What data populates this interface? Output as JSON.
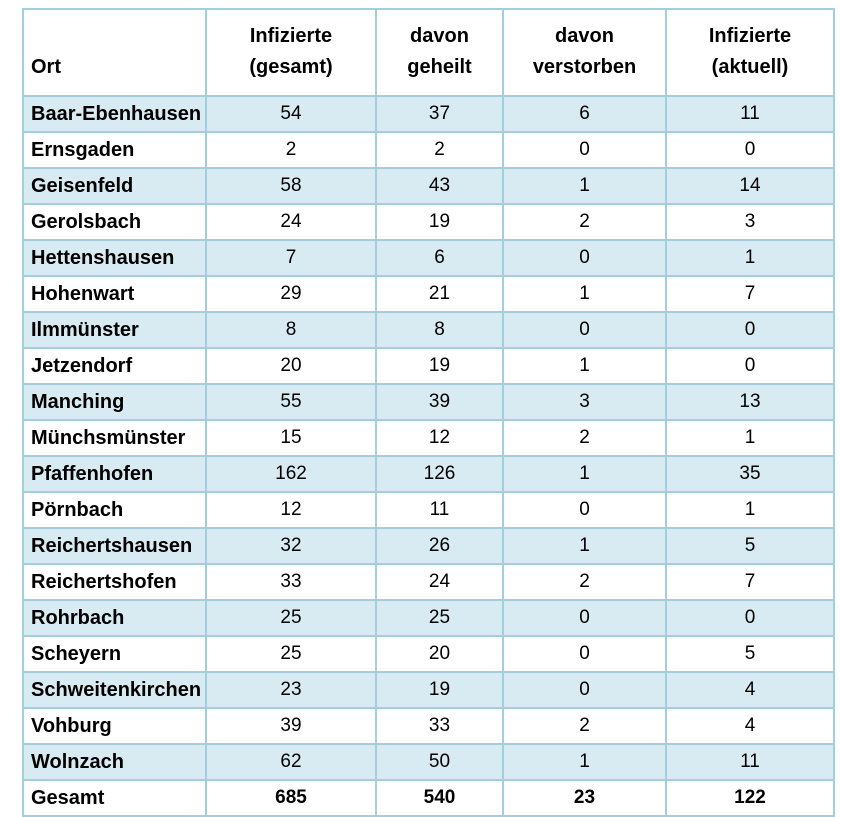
{
  "table": {
    "columns": [
      {
        "key": "ort",
        "label_lines": [
          "Ort"
        ]
      },
      {
        "key": "infizierte-gesamt",
        "label_lines": [
          "Infizierte",
          "(gesamt)"
        ]
      },
      {
        "key": "davon-geheilt",
        "label_lines": [
          "davon",
          "geheilt"
        ]
      },
      {
        "key": "davon-verstorben",
        "label_lines": [
          "davon",
          "verstorben"
        ]
      },
      {
        "key": "infizierte-aktuell",
        "label_lines": [
          "Infizierte",
          "(aktuell)"
        ]
      }
    ],
    "rows": [
      {
        "ort": "Baar-Ebenhausen",
        "values": [
          54,
          37,
          6,
          11
        ]
      },
      {
        "ort": "Ernsgaden",
        "values": [
          2,
          2,
          0,
          0
        ]
      },
      {
        "ort": "Geisenfeld",
        "values": [
          58,
          43,
          1,
          14
        ]
      },
      {
        "ort": "Gerolsbach",
        "values": [
          24,
          19,
          2,
          3
        ]
      },
      {
        "ort": "Hettenshausen",
        "values": [
          7,
          6,
          0,
          1
        ]
      },
      {
        "ort": "Hohenwart",
        "values": [
          29,
          21,
          1,
          7
        ]
      },
      {
        "ort": "Ilmmünster",
        "values": [
          8,
          8,
          0,
          0
        ]
      },
      {
        "ort": "Jetzendorf",
        "values": [
          20,
          19,
          1,
          0
        ]
      },
      {
        "ort": "Manching",
        "values": [
          55,
          39,
          3,
          13
        ]
      },
      {
        "ort": "Münchsmünster",
        "values": [
          15,
          12,
          2,
          1
        ]
      },
      {
        "ort": "Pfaffenhofen",
        "values": [
          162,
          126,
          1,
          35
        ]
      },
      {
        "ort": "Pörnbach",
        "values": [
          12,
          11,
          0,
          1
        ]
      },
      {
        "ort": "Reichertshausen",
        "values": [
          32,
          26,
          1,
          5
        ]
      },
      {
        "ort": "Reichertshofen",
        "values": [
          33,
          24,
          2,
          7
        ]
      },
      {
        "ort": "Rohrbach",
        "values": [
          25,
          25,
          0,
          0
        ]
      },
      {
        "ort": "Scheyern",
        "values": [
          25,
          20,
          0,
          5
        ]
      },
      {
        "ort": "Schweitenkirchen",
        "values": [
          23,
          19,
          0,
          4
        ]
      },
      {
        "ort": "Vohburg",
        "values": [
          39,
          33,
          2,
          4
        ]
      },
      {
        "ort": "Wolnzach",
        "values": [
          62,
          50,
          1,
          11
        ]
      }
    ],
    "total": {
      "ort": "Gesamt",
      "values": [
        685,
        540,
        23,
        122
      ]
    }
  },
  "colors": {
    "stripe": "#d9ebf2",
    "border": "#a2cfdc",
    "background": "#ffffff",
    "text": "#000000"
  },
  "chart_data": {
    "type": "table",
    "columns": [
      "Ort",
      "Infizierte (gesamt)",
      "davon geheilt",
      "davon verstorben",
      "Infizierte (aktuell)"
    ],
    "rows": [
      [
        "Baar-Ebenhausen",
        54,
        37,
        6,
        11
      ],
      [
        "Ernsgaden",
        2,
        2,
        0,
        0
      ],
      [
        "Geisenfeld",
        58,
        43,
        1,
        14
      ],
      [
        "Gerolsbach",
        24,
        19,
        2,
        3
      ],
      [
        "Hettenshausen",
        7,
        6,
        0,
        1
      ],
      [
        "Hohenwart",
        29,
        21,
        1,
        7
      ],
      [
        "Ilmmünster",
        8,
        8,
        0,
        0
      ],
      [
        "Jetzendorf",
        20,
        19,
        1,
        0
      ],
      [
        "Manching",
        55,
        39,
        3,
        13
      ],
      [
        "Münchsmünster",
        15,
        12,
        2,
        1
      ],
      [
        "Pfaffenhofen",
        162,
        126,
        1,
        35
      ],
      [
        "Pörnbach",
        12,
        11,
        0,
        1
      ],
      [
        "Reichertshausen",
        32,
        26,
        1,
        5
      ],
      [
        "Reichertshofen",
        33,
        24,
        2,
        7
      ],
      [
        "Rohrbach",
        25,
        25,
        0,
        0
      ],
      [
        "Scheyern",
        25,
        20,
        0,
        5
      ],
      [
        "Schweitenkirchen",
        23,
        19,
        0,
        4
      ],
      [
        "Vohburg",
        39,
        33,
        2,
        4
      ],
      [
        "Wolnzach",
        62,
        50,
        1,
        11
      ],
      [
        "Gesamt",
        685,
        540,
        23,
        122
      ]
    ],
    "layout_hints": {
      "row_striping": "odd rows light blue, even rows white",
      "total_row_bold": true,
      "header_bold": true,
      "place_names_bold": true
    }
  }
}
